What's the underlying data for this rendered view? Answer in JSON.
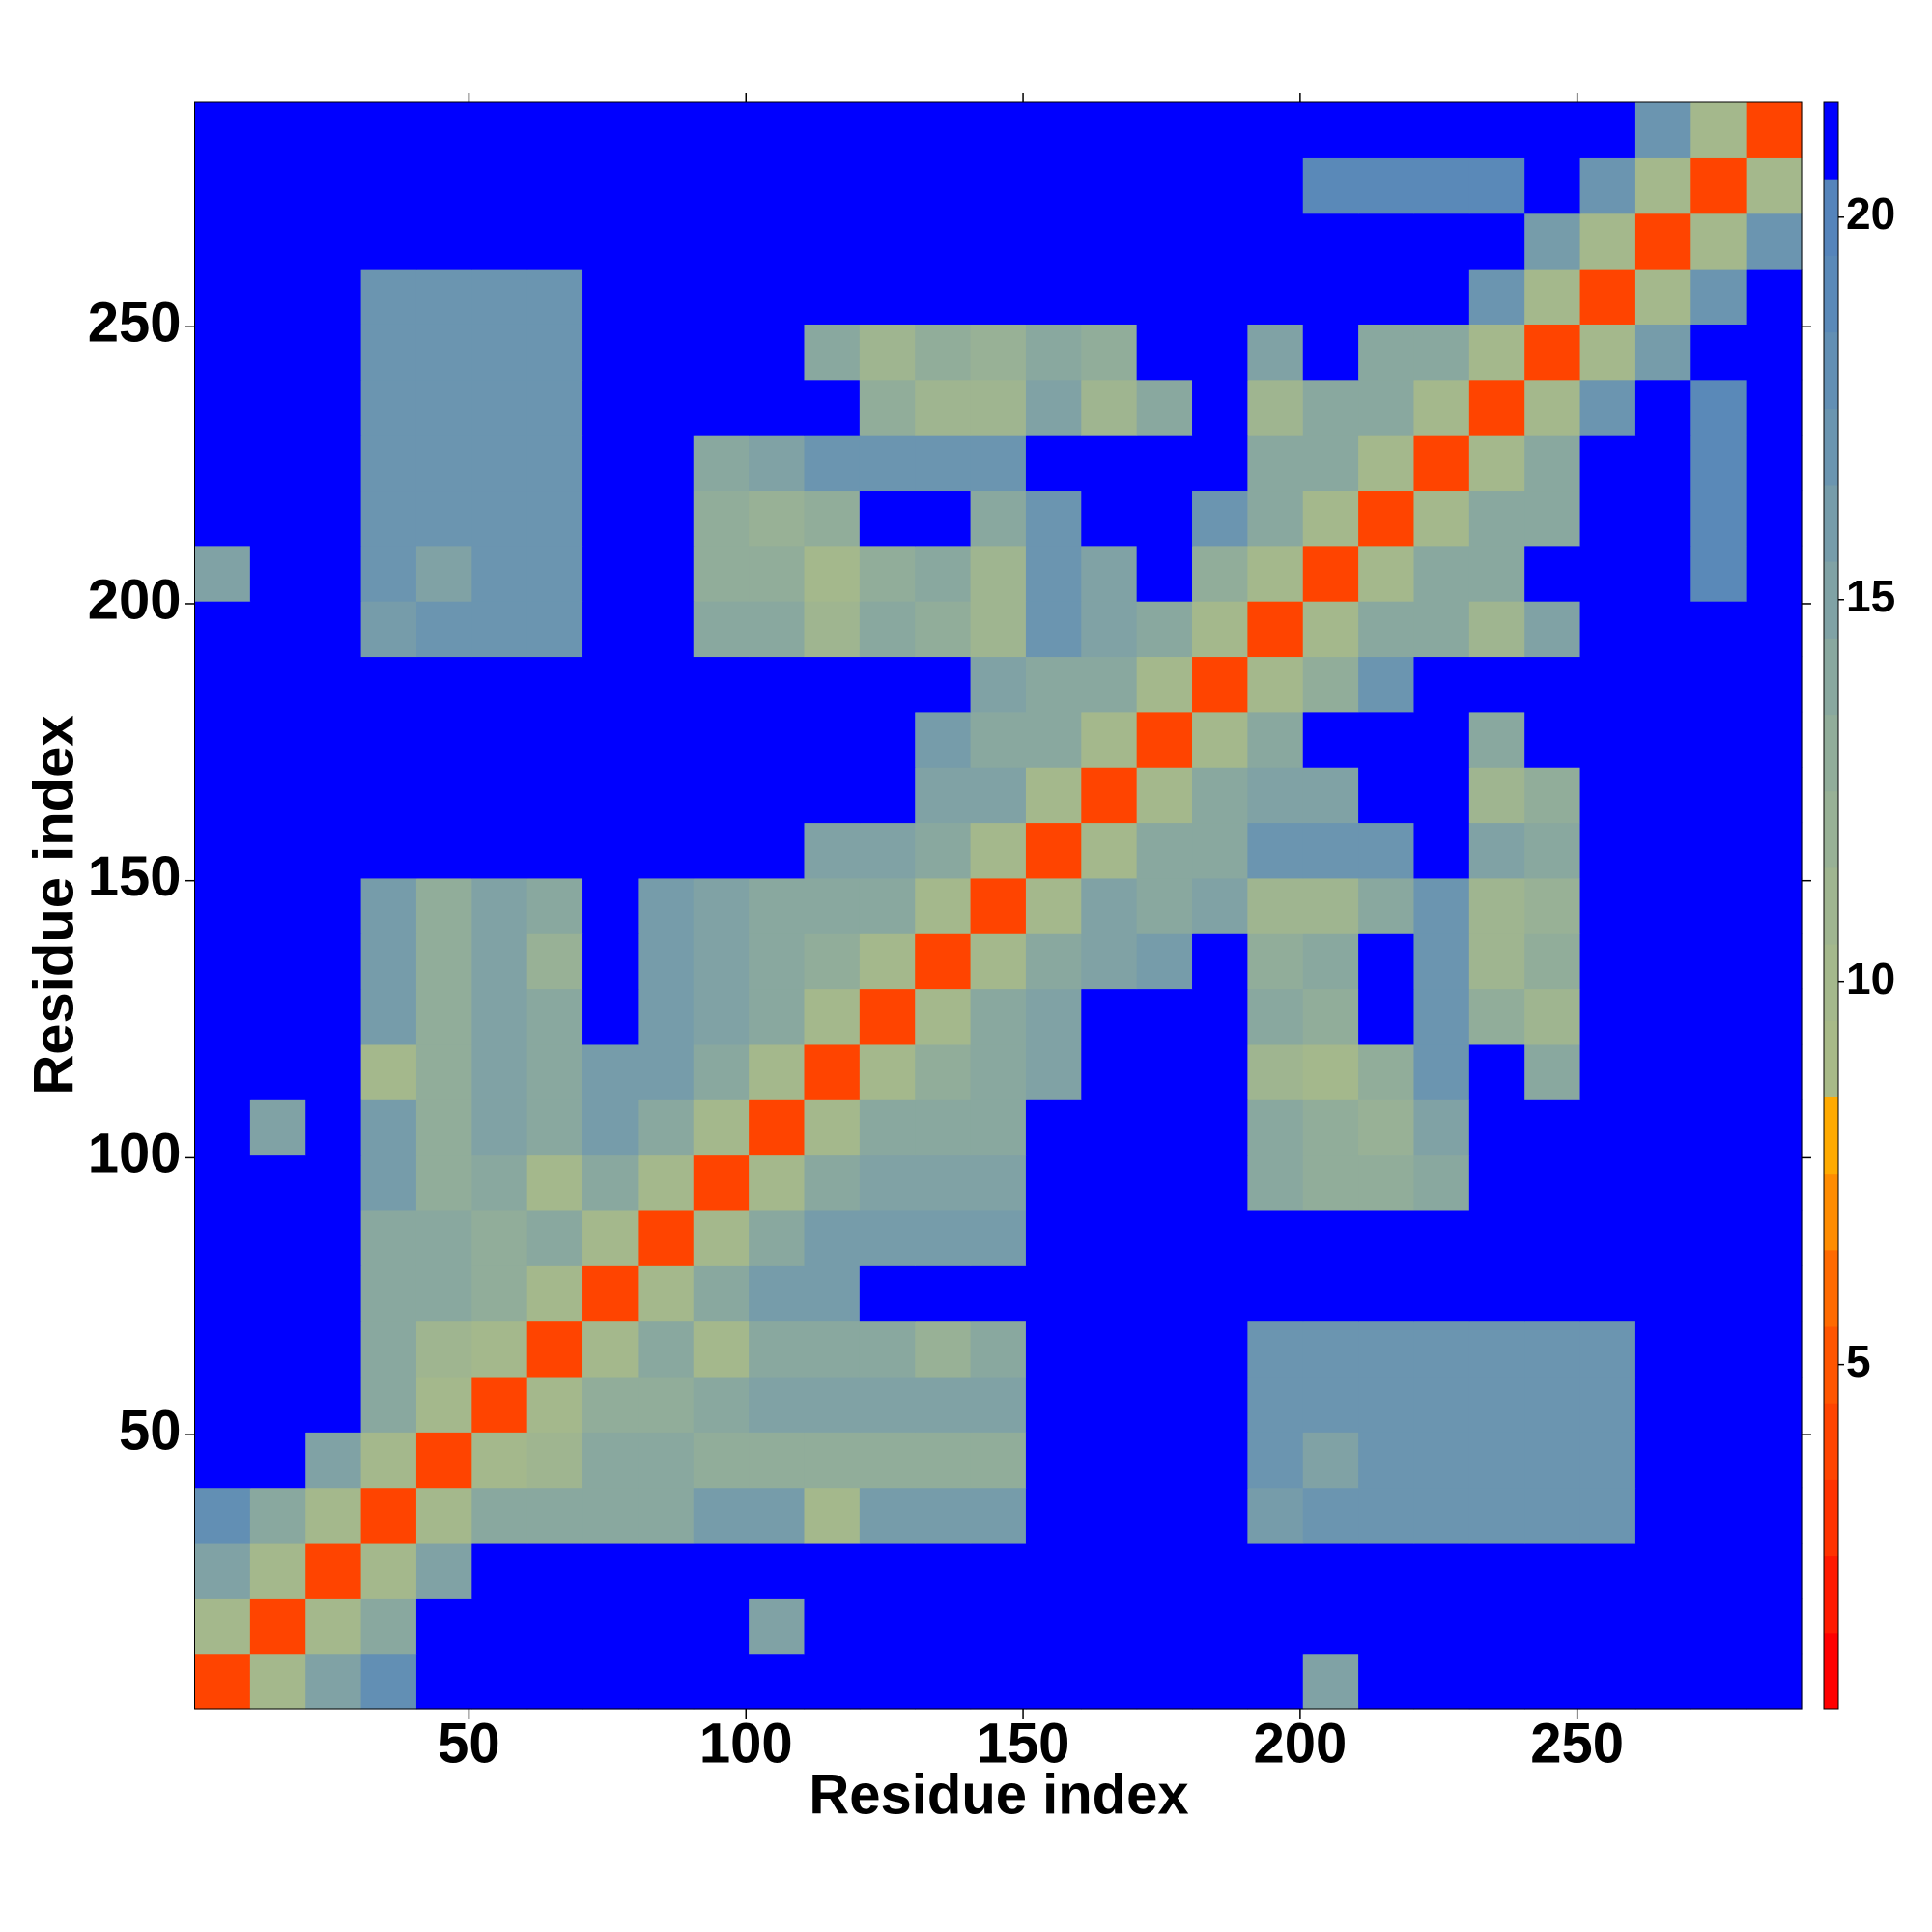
{
  "chart_data": {
    "type": "heatmap",
    "xlabel": "Residue index",
    "ylabel": "Residue index",
    "xbins": [
      0.5,
      10.5,
      20.5,
      30.5,
      40.5,
      50.5,
      60.5,
      70.5,
      80.5,
      90.5,
      100.5,
      110.5,
      120.5,
      130.5,
      140.5,
      150.5,
      160.5,
      170.5,
      180.5,
      190.5,
      200.5,
      210.5,
      220.5,
      230.5,
      240.5,
      250.5,
      260.5,
      270.5,
      280.5,
      290.5
    ],
    "ybins": [
      0.5,
      10.5,
      20.5,
      30.5,
      40.5,
      50.5,
      60.5,
      70.5,
      80.5,
      90.5,
      100.5,
      110.5,
      120.5,
      130.5,
      140.5,
      150.5,
      160.5,
      170.5,
      180.5,
      190.5,
      200.5,
      210.5,
      220.5,
      230.5,
      240.5,
      250.5,
      260.5,
      270.5,
      280.5,
      290.5
    ],
    "xlim": [
      0.5,
      290.5
    ],
    "ylim": [
      0.5,
      290.5
    ],
    "xticks": [
      50,
      100,
      150,
      200,
      250
    ],
    "yticks": [
      50,
      100,
      150,
      200,
      250
    ],
    "clim": [
      0.5,
      21.5
    ],
    "cticks": [
      5,
      10,
      15,
      20
    ],
    "colors": [
      "#ff0000",
      "#ff1a00",
      "#ff3300",
      "#ff4400",
      "#ff5500",
      "#ff6a00",
      "#ff8c00",
      "#ffaa00",
      "#a8ba88",
      "#a4b88c",
      "#9fb590",
      "#98b196",
      "#91ad9a",
      "#89a89f",
      "#80a2a5",
      "#769caa",
      "#6b95b0",
      "#628fb4",
      "#5a89b8",
      "#5584bb",
      "#0000ff"
    ],
    "z": [
      [
        4,
        10,
        15,
        18,
        21,
        21,
        21,
        21,
        21,
        21,
        21,
        21,
        21,
        21,
        21,
        21,
        21,
        21,
        21,
        21,
        15,
        21,
        21,
        21,
        21,
        21,
        21,
        21,
        21
      ],
      [
        10,
        4,
        10,
        14,
        21,
        21,
        21,
        21,
        21,
        21,
        15,
        21,
        21,
        21,
        21,
        21,
        21,
        21,
        21,
        21,
        21,
        21,
        21,
        21,
        21,
        21,
        21,
        21,
        21
      ],
      [
        15,
        10,
        4,
        10,
        15,
        21,
        21,
        21,
        21,
        21,
        21,
        21,
        21,
        21,
        21,
        21,
        21,
        21,
        21,
        21,
        21,
        21,
        21,
        21,
        21,
        21,
        21,
        21,
        21
      ],
      [
        18,
        14,
        10,
        4,
        10,
        14,
        14,
        14,
        14,
        16,
        16,
        10,
        16,
        16,
        16,
        21,
        21,
        21,
        21,
        16,
        17,
        17,
        17,
        17,
        17,
        17,
        21,
        21,
        21
      ],
      [
        21,
        21,
        15,
        10,
        4,
        10,
        11,
        14,
        14,
        13,
        13,
        13,
        13,
        13,
        13,
        21,
        21,
        21,
        21,
        17,
        15,
        17,
        17,
        17,
        17,
        17,
        21,
        21,
        21
      ],
      [
        21,
        21,
        21,
        14,
        10,
        4,
        10,
        13,
        13,
        14,
        15,
        15,
        15,
        15,
        15,
        21,
        21,
        21,
        21,
        17,
        17,
        17,
        17,
        17,
        17,
        17,
        21,
        21,
        21
      ],
      [
        21,
        21,
        21,
        14,
        11,
        10,
        4,
        10,
        14,
        10,
        14,
        14,
        14,
        12,
        14,
        21,
        21,
        21,
        21,
        17,
        17,
        17,
        17,
        17,
        17,
        17,
        21,
        21,
        21
      ],
      [
        21,
        21,
        21,
        14,
        14,
        13,
        10,
        4,
        10,
        14,
        16,
        16,
        21,
        21,
        21,
        21,
        21,
        21,
        21,
        21,
        21,
        21,
        21,
        21,
        21,
        21,
        21,
        21,
        21
      ],
      [
        21,
        21,
        21,
        14,
        14,
        13,
        14,
        10,
        4,
        10,
        14,
        16,
        16,
        16,
        16,
        21,
        21,
        21,
        21,
        21,
        21,
        21,
        21,
        21,
        21,
        21,
        21,
        21,
        21
      ],
      [
        21,
        21,
        21,
        16,
        13,
        14,
        10,
        14,
        10,
        4,
        10,
        14,
        15,
        15,
        15,
        21,
        21,
        21,
        21,
        14,
        13,
        13,
        14,
        21,
        21,
        21,
        21,
        21,
        21
      ],
      [
        21,
        15,
        21,
        16,
        13,
        15,
        14,
        16,
        14,
        10,
        4,
        10,
        14,
        14,
        14,
        21,
        21,
        21,
        21,
        14,
        13,
        12,
        15,
        21,
        21,
        21,
        21,
        21,
        21
      ],
      [
        21,
        21,
        21,
        10,
        13,
        15,
        14,
        16,
        16,
        14,
        10,
        4,
        10,
        13,
        14,
        15,
        21,
        21,
        21,
        11,
        10,
        13,
        17,
        21,
        14,
        21,
        21,
        21,
        21
      ],
      [
        21,
        21,
        21,
        16,
        13,
        15,
        14,
        21,
        16,
        15,
        14,
        10,
        4,
        10,
        14,
        15,
        21,
        21,
        21,
        14,
        13,
        21,
        17,
        13,
        11,
        21,
        21,
        21,
        21
      ],
      [
        21,
        21,
        21,
        16,
        13,
        15,
        12,
        21,
        16,
        15,
        14,
        13,
        10,
        4,
        10,
        14,
        15,
        16,
        21,
        13,
        14,
        21,
        17,
        11,
        13,
        21,
        21,
        21,
        21
      ],
      [
        21,
        21,
        21,
        16,
        13,
        15,
        14,
        21,
        16,
        15,
        14,
        14,
        14,
        10,
        4,
        10,
        15,
        14,
        15,
        11,
        11,
        14,
        17,
        11,
        12,
        21,
        21,
        21,
        21
      ],
      [
        21,
        21,
        21,
        21,
        21,
        21,
        21,
        21,
        21,
        21,
        21,
        15,
        15,
        14,
        10,
        4,
        10,
        14,
        14,
        17,
        17,
        17,
        21,
        15,
        14,
        21,
        21,
        21,
        21
      ],
      [
        21,
        21,
        21,
        21,
        21,
        21,
        21,
        21,
        21,
        21,
        21,
        21,
        21,
        15,
        15,
        10,
        4,
        10,
        14,
        15,
        15,
        21,
        21,
        11,
        13,
        21,
        21,
        21,
        21
      ],
      [
        21,
        21,
        21,
        21,
        21,
        21,
        21,
        21,
        21,
        21,
        21,
        21,
        21,
        16,
        14,
        14,
        10,
        4,
        10,
        14,
        21,
        21,
        21,
        14,
        21,
        21,
        21,
        21,
        21
      ],
      [
        21,
        21,
        21,
        21,
        21,
        21,
        21,
        21,
        21,
        21,
        21,
        21,
        21,
        21,
        15,
        14,
        14,
        10,
        4,
        10,
        13,
        17,
        21,
        21,
        21,
        21,
        21,
        21,
        21
      ],
      [
        21,
        21,
        21,
        16,
        17,
        17,
        17,
        21,
        21,
        14,
        14,
        11,
        14,
        13,
        11,
        17,
        15,
        14,
        10,
        4,
        10,
        14,
        14,
        11,
        15,
        21,
        21,
        21,
        21
      ],
      [
        15,
        21,
        21,
        17,
        15,
        17,
        17,
        21,
        21,
        13,
        13,
        10,
        13,
        14,
        11,
        17,
        15,
        21,
        13,
        10,
        4,
        10,
        14,
        14,
        21,
        21,
        21,
        19,
        21
      ],
      [
        21,
        21,
        21,
        17,
        17,
        17,
        17,
        21,
        21,
        13,
        12,
        13,
        21,
        21,
        14,
        17,
        21,
        21,
        17,
        14,
        10,
        4,
        10,
        14,
        14,
        21,
        21,
        19,
        21
      ],
      [
        21,
        21,
        21,
        17,
        17,
        17,
        17,
        21,
        21,
        14,
        15,
        17,
        17,
        17,
        17,
        21,
        21,
        21,
        21,
        14,
        14,
        10,
        4,
        10,
        14,
        21,
        21,
        19,
        21
      ],
      [
        21,
        21,
        21,
        17,
        17,
        17,
        17,
        21,
        21,
        21,
        21,
        21,
        13,
        11,
        11,
        15,
        11,
        14,
        21,
        11,
        14,
        14,
        10,
        4,
        10,
        17,
        21,
        19,
        21
      ],
      [
        21,
        21,
        21,
        17,
        17,
        17,
        17,
        21,
        21,
        21,
        21,
        14,
        11,
        13,
        12,
        14,
        13,
        21,
        21,
        15,
        21,
        14,
        14,
        10,
        4,
        10,
        16,
        21,
        21
      ],
      [
        21,
        21,
        21,
        17,
        17,
        17,
        17,
        21,
        21,
        21,
        21,
        21,
        21,
        21,
        21,
        21,
        21,
        21,
        21,
        21,
        21,
        21,
        21,
        17,
        10,
        4,
        10,
        17,
        21
      ],
      [
        21,
        21,
        21,
        21,
        21,
        21,
        21,
        21,
        21,
        21,
        21,
        21,
        21,
        21,
        21,
        21,
        21,
        21,
        21,
        21,
        21,
        21,
        21,
        21,
        16,
        10,
        4,
        10,
        17
      ],
      [
        21,
        21,
        21,
        21,
        21,
        21,
        21,
        21,
        21,
        21,
        21,
        21,
        21,
        21,
        21,
        21,
        21,
        21,
        21,
        21,
        19,
        19,
        19,
        19,
        21,
        17,
        10,
        4,
        10
      ],
      [
        21,
        21,
        21,
        21,
        21,
        21,
        21,
        21,
        21,
        21,
        21,
        21,
        21,
        21,
        21,
        21,
        21,
        21,
        21,
        21,
        21,
        21,
        21,
        21,
        21,
        21,
        17,
        10,
        4
      ]
    ]
  }
}
